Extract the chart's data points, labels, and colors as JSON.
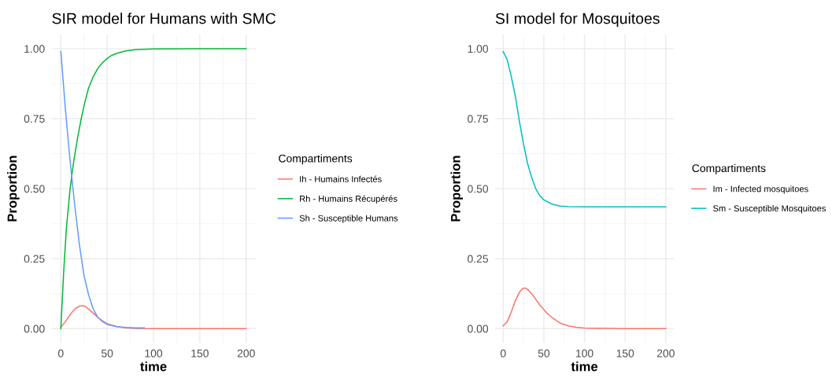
{
  "chart_data": [
    {
      "type": "line",
      "title": "SIR model for Humans with SMC",
      "xlabel": "time",
      "ylabel": "Proportion",
      "legend_title": "Compartiments",
      "legend": "right",
      "grid": true,
      "xlim": [
        -10,
        210
      ],
      "ylim": [
        -0.05,
        1.05
      ],
      "xticks": [
        0,
        50,
        100,
        150,
        200
      ],
      "yticks": [
        {
          "value": 0,
          "label": "0.00"
        },
        {
          "value": 0.25,
          "label": "0.25"
        },
        {
          "value": 0.5,
          "label": "0.50"
        },
        {
          "value": 0.75,
          "label": "0.75"
        },
        {
          "value": 1,
          "label": "1.00"
        }
      ],
      "series": [
        {
          "name": "Ih - Humains Infectés",
          "color": "#f8766d",
          "x": [
            0,
            5,
            10,
            15,
            20,
            23,
            26,
            30,
            35,
            40,
            45,
            50,
            60,
            70,
            80,
            100,
            150,
            200
          ],
          "values": [
            0.005,
            0.025,
            0.05,
            0.07,
            0.08,
            0.082,
            0.08,
            0.07,
            0.055,
            0.04,
            0.028,
            0.018,
            0.008,
            0.003,
            0.001,
            0,
            0,
            0
          ]
        },
        {
          "name": "Rh - Humains Récupérés",
          "color": "#00ba38",
          "x": [
            0,
            3,
            6,
            10,
            14,
            18,
            22,
            26,
            30,
            35,
            40,
            45,
            50,
            55,
            60,
            70,
            80,
            100,
            150,
            200
          ],
          "values": [
            0,
            0.2,
            0.36,
            0.5,
            0.6,
            0.68,
            0.75,
            0.81,
            0.86,
            0.9,
            0.93,
            0.95,
            0.965,
            0.976,
            0.983,
            0.992,
            0.996,
            0.999,
            1,
            1
          ]
        },
        {
          "name": "Sh - Susceptible Humans",
          "color": "#619cff",
          "x": [
            0,
            5,
            10,
            15,
            20,
            25,
            30,
            35,
            40,
            45,
            50,
            60,
            70,
            80,
            90
          ],
          "values": [
            0.99,
            0.78,
            0.6,
            0.44,
            0.3,
            0.19,
            0.12,
            0.07,
            0.04,
            0.025,
            0.015,
            0.007,
            0.004,
            0.003,
            0.003
          ]
        }
      ]
    },
    {
      "type": "line",
      "title": "SI model for Mosquitoes",
      "xlabel": "time",
      "ylabel": "Proportion",
      "legend_title": "Compartiments",
      "legend": "right",
      "grid": true,
      "xlim": [
        -10,
        210
      ],
      "ylim": [
        -0.05,
        1.05
      ],
      "xticks": [
        0,
        50,
        100,
        150,
        200
      ],
      "yticks": [
        {
          "value": 0,
          "label": "0.00"
        },
        {
          "value": 0.25,
          "label": "0.25"
        },
        {
          "value": 0.5,
          "label": "0.50"
        },
        {
          "value": 0.75,
          "label": "0.75"
        },
        {
          "value": 1,
          "label": "1.00"
        }
      ],
      "series": [
        {
          "name": "Im - Infected mosquitoes",
          "color": "#f8766d",
          "x": [
            0,
            5,
            10,
            15,
            20,
            24,
            27,
            30,
            35,
            40,
            45,
            50,
            55,
            60,
            70,
            80,
            90,
            100,
            150,
            200
          ],
          "values": [
            0.01,
            0.025,
            0.06,
            0.1,
            0.13,
            0.143,
            0.145,
            0.14,
            0.125,
            0.105,
            0.085,
            0.068,
            0.052,
            0.04,
            0.02,
            0.01,
            0.005,
            0.002,
            0,
            0
          ]
        },
        {
          "name": "Sm - Susceptible Mosquitoes",
          "color": "#00bfc4",
          "x": [
            0,
            5,
            10,
            15,
            20,
            25,
            30,
            35,
            40,
            45,
            50,
            60,
            70,
            80,
            100,
            150,
            200
          ],
          "values": [
            0.99,
            0.96,
            0.9,
            0.83,
            0.74,
            0.66,
            0.59,
            0.54,
            0.5,
            0.475,
            0.46,
            0.445,
            0.438,
            0.436,
            0.435,
            0.435,
            0.435
          ]
        }
      ]
    }
  ]
}
